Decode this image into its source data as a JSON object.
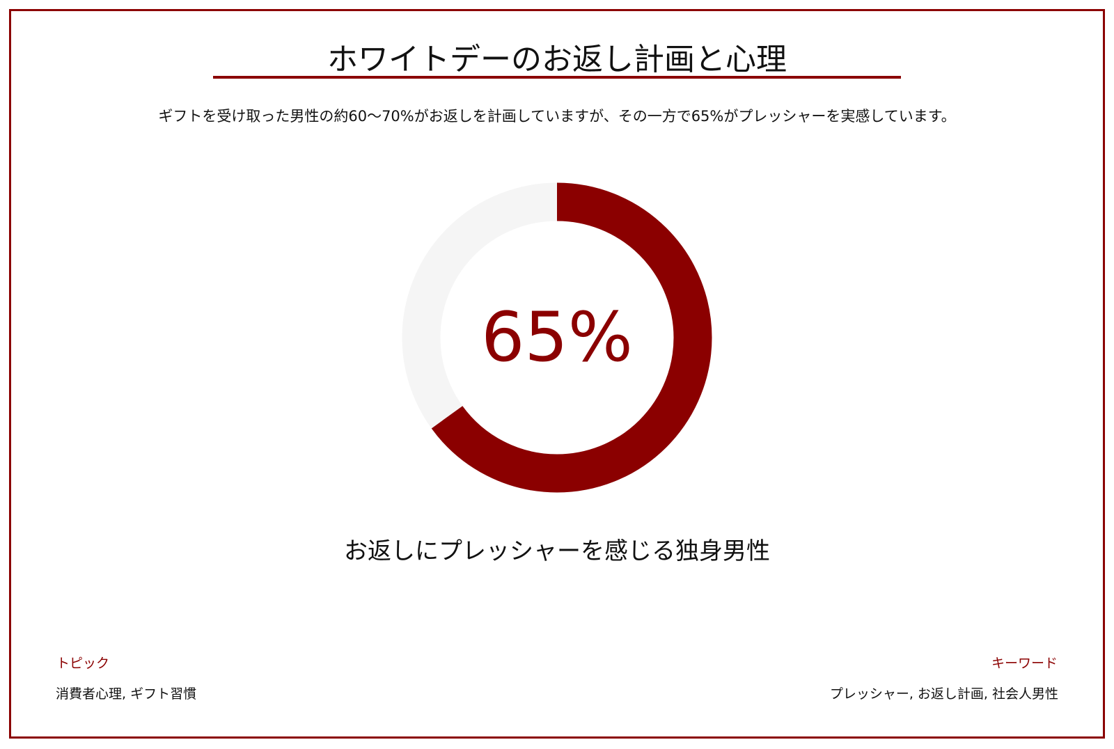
{
  "title": "ホワイトデーのお返し計画と心理",
  "subtitle": "ギフトを受け取った男性の約60〜70%がお返しを計画していますが、その一方で65%がプレッシャーを実感しています。",
  "colors": {
    "accent": "#8b0000",
    "track": "#f5f5f5"
  },
  "chart_data": {
    "type": "pie",
    "variant": "donut",
    "value": 65,
    "remainder": 35,
    "center_label": "65%",
    "label": "お返しにプレッシャーを感じる独身男性"
  },
  "footer": {
    "topic_label": "トピック",
    "topic_value": "消費者心理, ギフト習慣",
    "keyword_label": "キーワード",
    "keyword_value": "プレッシャー, お返し計画, 社会人男性"
  }
}
